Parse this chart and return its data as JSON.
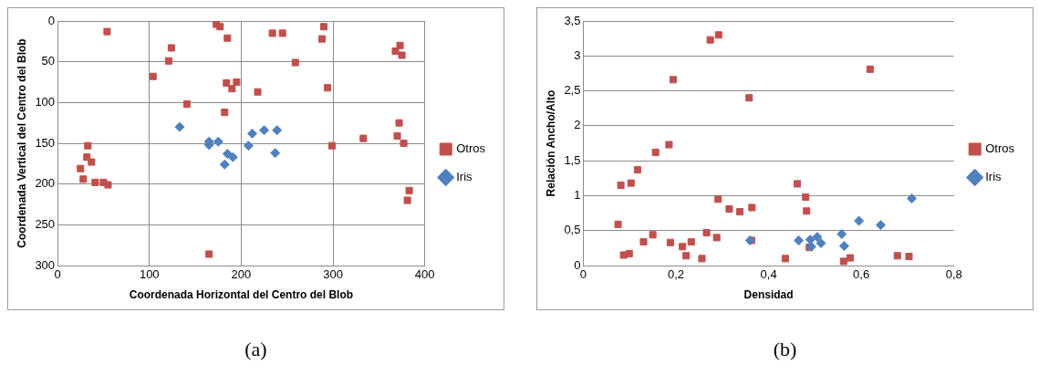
{
  "chart_data": [
    {
      "type": "scatter",
      "xlabel": "Coordenada Horizontal del Centro del Blob",
      "ylabel": "Coordenada Vertical del Centro del Blob",
      "annotations": [
        "(a)"
      ],
      "xlim": [
        0,
        400
      ],
      "xticks": [
        0,
        100,
        200,
        300,
        400
      ],
      "ylim": [
        300,
        0
      ],
      "yticks": [
        0,
        50,
        100,
        150,
        200,
        250,
        300
      ],
      "grid": true,
      "legend": "right",
      "series": [
        {
          "name": "Otros",
          "color": "#c0504d",
          "marker": "square",
          "x": [
            54,
            124,
            121,
            104,
            141,
            33,
            32,
            37,
            25,
            28,
            41,
            50,
            55,
            173,
            177,
            185,
            184,
            195,
            190,
            218,
            182,
            234,
            245,
            290,
            288,
            259,
            294,
            299,
            333,
            165,
            373,
            375,
            368,
            372,
            377,
            370,
            383,
            381
          ],
          "values": [
            13,
            33,
            49,
            68,
            102,
            153,
            167,
            173,
            181,
            194,
            198,
            198,
            201,
            4,
            7,
            21,
            76,
            75,
            83,
            87,
            112,
            15,
            15,
            7,
            22,
            51,
            82,
            153,
            144,
            286,
            30,
            42,
            37,
            125,
            150,
            141,
            208,
            220
          ]
        },
        {
          "name": "Iris",
          "color": "#4f81bd",
          "marker": "diamond",
          "x": [
            133,
            165,
            165,
            175,
            185,
            191,
            182,
            208,
            212,
            225,
            239,
            237
          ],
          "values": [
            130,
            148,
            152,
            148,
            163,
            167,
            176,
            153,
            138,
            134,
            134,
            162
          ]
        }
      ]
    },
    {
      "type": "scatter",
      "xlabel": "Densidad",
      "ylabel": "Relación Ancho/Alto",
      "annotations": [
        "(b)"
      ],
      "xlim": [
        0,
        0.8
      ],
      "xticks": [
        0,
        {
          "value": 0.2,
          "label": "0,2"
        },
        {
          "value": 0.4,
          "label": "0,4"
        },
        {
          "value": 0.6,
          "label": "0,6"
        },
        {
          "value": 0.8,
          "label": "0,8"
        }
      ],
      "ylim": [
        0,
        3.5
      ],
      "yticks": [
        0,
        {
          "value": 0.5,
          "label": "0,5"
        },
        1,
        {
          "value": 1.5,
          "label": "1,5"
        },
        2,
        {
          "value": 2.5,
          "label": "2,5"
        },
        3,
        {
          "value": 3.5,
          "label": "3,5"
        }
      ],
      "grid": "y",
      "legend": "right",
      "series": [
        {
          "name": "Otros",
          "color": "#c0504d",
          "marker": "square",
          "x": [
            0.274,
            0.292,
            0.194,
            0.358,
            0.185,
            0.156,
            0.117,
            0.081,
            0.103,
            0.075,
            0.087,
            0.099,
            0.13,
            0.15,
            0.188,
            0.214,
            0.222,
            0.233,
            0.256,
            0.266,
            0.288,
            0.291,
            0.315,
            0.338,
            0.364,
            0.363,
            0.619,
            0.462,
            0.48,
            0.482,
            0.436,
            0.488,
            0.562,
            0.576,
            0.678,
            0.703
          ],
          "values": [
            3.23,
            3.3,
            2.66,
            2.4,
            1.73,
            1.62,
            1.37,
            1.15,
            1.18,
            0.59,
            0.15,
            0.17,
            0.34,
            0.44,
            0.33,
            0.27,
            0.14,
            0.34,
            0.1,
            0.47,
            0.4,
            0.95,
            0.81,
            0.77,
            0.83,
            0.36,
            2.81,
            1.17,
            0.98,
            0.78,
            0.1,
            0.26,
            0.06,
            0.11,
            0.14,
            0.13
          ]
        },
        {
          "name": "Iris",
          "color": "#4f81bd",
          "marker": "diamond",
          "x": [
            0.36,
            0.465,
            0.49,
            0.492,
            0.505,
            0.513,
            0.558,
            0.563,
            0.595,
            0.642,
            0.709
          ],
          "values": [
            0.36,
            0.36,
            0.37,
            0.27,
            0.41,
            0.32,
            0.45,
            0.28,
            0.64,
            0.58,
            0.96
          ]
        }
      ]
    }
  ]
}
